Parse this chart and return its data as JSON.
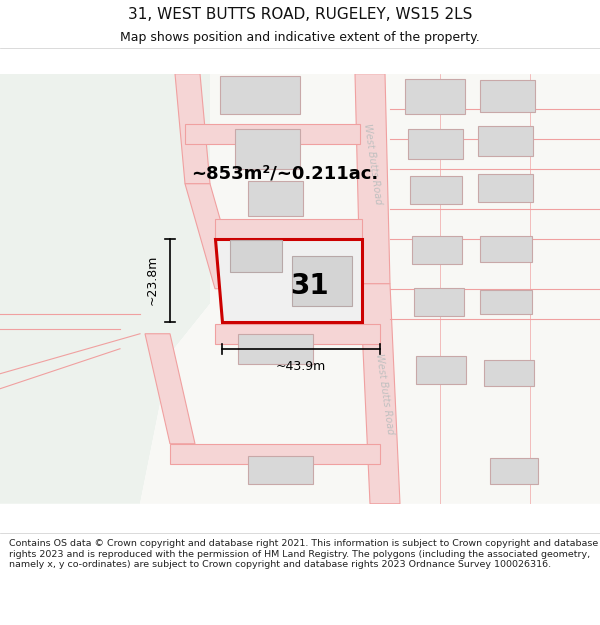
{
  "title": "31, WEST BUTTS ROAD, RUGELEY, WS15 2LS",
  "subtitle": "Map shows position and indicative extent of the property.",
  "footer": "Contains OS data © Crown copyright and database right 2021. This information is subject to Crown copyright and database rights 2023 and is reproduced with the permission of HM Land Registry. The polygons (including the associated geometry, namely x, y co-ordinates) are subject to Crown copyright and database rights 2023 Ordnance Survey 100026316.",
  "area_text": "~853m²/~0.211ac.",
  "width_label": "~43.9m",
  "height_label": "~23.8m",
  "number_label": "31",
  "road_label": "West Butts Road",
  "title_fontsize": 11,
  "subtitle_fontsize": 9,
  "footer_fontsize": 6.8,
  "bg_left_color": "#edf2ed",
  "bg_right_color": "#f8f8f5",
  "road_line_color": "#f0a0a0",
  "road_fill_color": "#f5d5d5",
  "plot_fill_color": "#d8d8d8",
  "plot_edge_color": "#c8a8a8",
  "highlight_edge_color": "#cc0000",
  "highlight_fill_color": "#f0f0f0",
  "road_label_color": "#c0c0c0",
  "sub_building_fill": "#d4d4d4",
  "sub_building_edge": "#b8a8a8"
}
